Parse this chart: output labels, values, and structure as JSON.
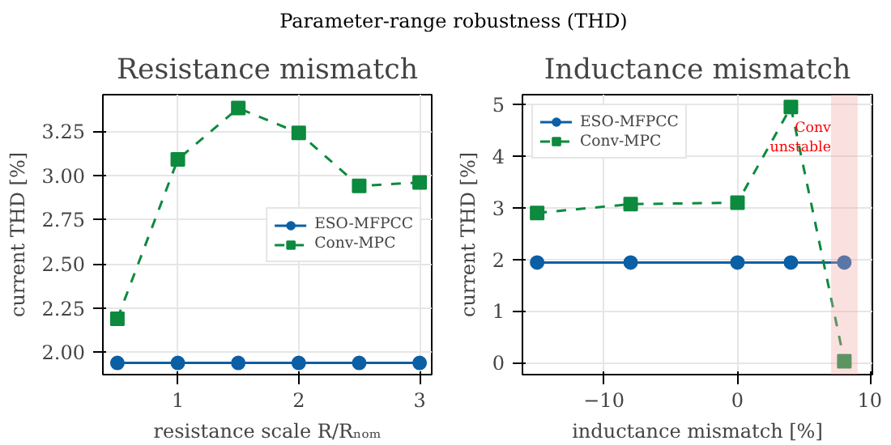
{
  "chart_data": [
    {
      "type": "line",
      "title": "Resistance mismatch",
      "annotations": [
        "Parameter-range robustness (THD)"
      ],
      "xlabel": "resistance scale R/Rₙₒₘ",
      "ylabel": "current THD [%]",
      "x": [
        0.5,
        1,
        1.5,
        2,
        2.5,
        3
      ],
      "series": [
        {
          "name": "ESO-MFPCC",
          "color": "#0b5fa5",
          "values": [
            1.94,
            1.94,
            1.94,
            1.94,
            1.94,
            1.94
          ],
          "marker": "circle",
          "line_style": "solid"
        },
        {
          "name": "Conv-MPC",
          "color": "#0c8a3e",
          "values": [
            2.19,
            3.09,
            3.38,
            3.24,
            2.94,
            2.96
          ],
          "marker": "square",
          "line_style": "dashed"
        }
      ],
      "xlim": [
        0.38,
        3.1
      ],
      "ylim": [
        1.874,
        3.456
      ],
      "xticks": [
        1,
        2,
        3
      ],
      "yticks": [
        {
          "value": 2,
          "label": "2.00"
        },
        {
          "value": 2.25,
          "label": "2.25"
        },
        {
          "value": 2.5,
          "label": "2.50"
        },
        {
          "value": 2.75,
          "label": "2.75"
        },
        {
          "value": 3,
          "label": "3.00"
        },
        {
          "value": 3.25,
          "label": "3.25"
        }
      ],
      "grid": true,
      "legend": "right"
    },
    {
      "type": "line",
      "title": "Inductance mismatch",
      "xlabel": "inductance mismatch [%]",
      "ylabel": "current THD [%]",
      "x": [
        -15,
        -8,
        0,
        4,
        8
      ],
      "series": [
        {
          "name": "ESO-MFPCC",
          "color": "#0b5fa5",
          "values": [
            1.94,
            1.94,
            1.94,
            1.94,
            1.94
          ],
          "marker": "circle",
          "line_style": "solid"
        },
        {
          "name": "Conv-MPC",
          "color": "#0c8a3e",
          "values": [
            2.9,
            3.07,
            3.1,
            4.95,
            0.03
          ],
          "marker": "square",
          "line_style": "dashed"
        }
      ],
      "bands": [
        {
          "axis": "x",
          "from": 7,
          "to": 9,
          "label": "Conv\nunstable",
          "color": "#f4a6a6"
        }
      ],
      "xlim": [
        -16.1,
        10.1
      ],
      "ylim": [
        -0.23,
        5.19
      ],
      "xticks": [
        {
          "value": -10,
          "label": "−10"
        },
        0,
        10
      ],
      "yticks": [
        0,
        1,
        2,
        3,
        4,
        5
      ],
      "grid": true,
      "legend": "top left"
    }
  ]
}
